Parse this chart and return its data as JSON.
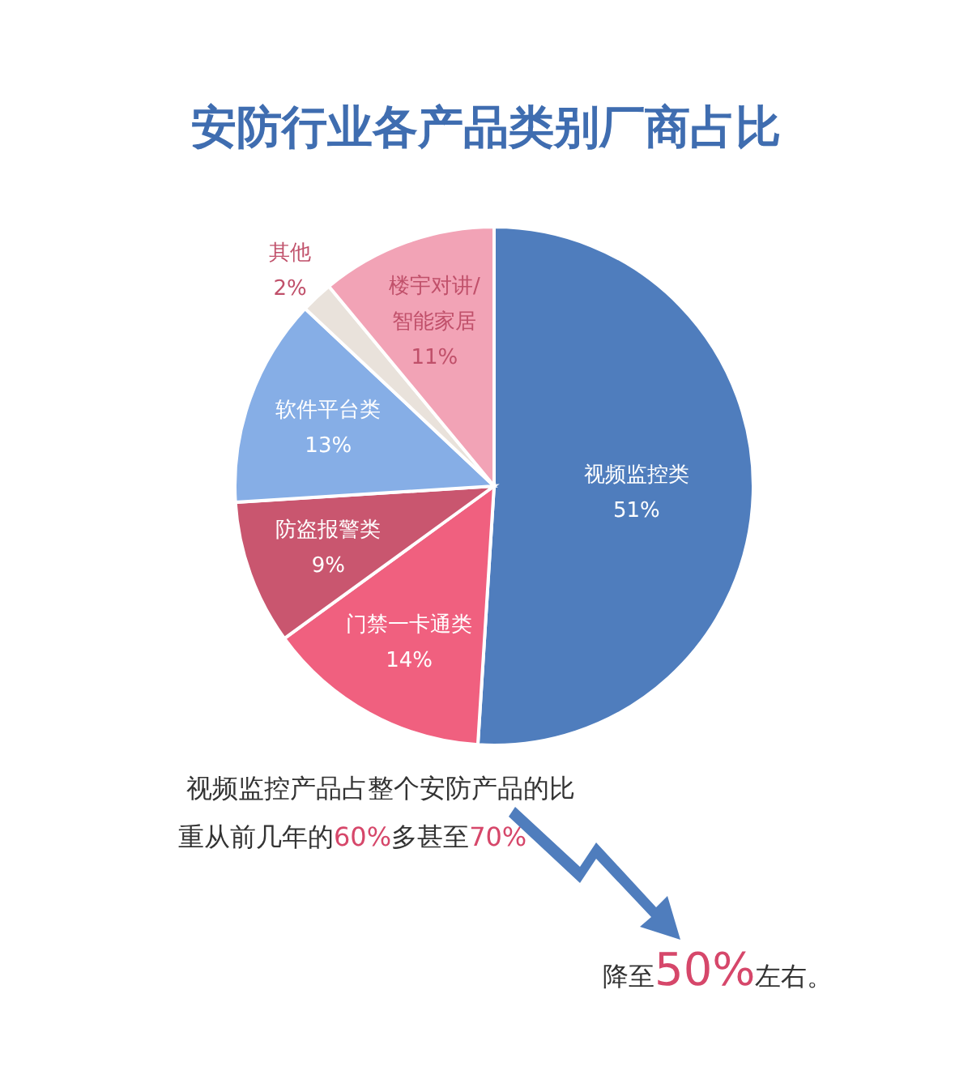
{
  "chart_data": {
    "type": "pie",
    "title": "安防行业各产品类别厂商占比",
    "categories": [
      "视频监控类",
      "门禁一卡通类",
      "防盗报警类",
      "软件平台类",
      "其他",
      "楼宇对讲/智能家居"
    ],
    "values": [
      51,
      14,
      9,
      13,
      2,
      11
    ],
    "colors": [
      "#4f7dbd",
      "#f0607f",
      "#c9566f",
      "#86aee6",
      "#e9e2db",
      "#f2a3b6"
    ],
    "value_labels": [
      "51%",
      "14%",
      "9%",
      "13%",
      "2%",
      "11%"
    ],
    "legend": false,
    "annotations": [
      "视频监控产品占整个安防产品的比重从前几年的60%多甚至70%",
      "降至50%左右。"
    ]
  }
}
